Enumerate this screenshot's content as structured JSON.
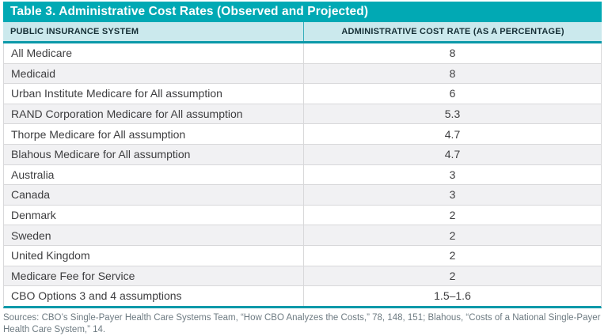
{
  "chart_data": {
    "type": "table",
    "title": "Table 3. Administrative Cost Rates (Observed and Projected)",
    "columns": [
      "PUBLIC INSURANCE SYSTEM",
      "ADMINISTRATIVE COST RATE (AS A PERCENTAGE)"
    ],
    "rows": [
      {
        "system": "All Medicare",
        "rate": "8"
      },
      {
        "system": "Medicaid",
        "rate": "8"
      },
      {
        "system": "Urban Institute Medicare for All assumption",
        "rate": "6"
      },
      {
        "system": "RAND Corporation Medicare for All assumption",
        "rate": "5.3"
      },
      {
        "system": "Thorpe Medicare for All assumption",
        "rate": "4.7"
      },
      {
        "system": "Blahous Medicare for All assumption",
        "rate": "4.7"
      },
      {
        "system": "Australia",
        "rate": "3"
      },
      {
        "system": "Canada",
        "rate": "3"
      },
      {
        "system": "Denmark",
        "rate": "2"
      },
      {
        "system": "Sweden",
        "rate": "2"
      },
      {
        "system": "United Kingdom",
        "rate": "2"
      },
      {
        "system": "Medicare Fee for Service",
        "rate": "2"
      },
      {
        "system": "CBO Options 3 and 4 assumptions",
        "rate": "1.5–1.6"
      }
    ],
    "source": "Sources: CBO’s Single-Payer Health Care Systems Team, “How CBO Analyzes the Costs,” 78, 148, 151; Blahous, “Costs of a National Single-Payer Health Care System,” 14.",
    "colors": {
      "title_bar": "#01a9b4",
      "header_background": "#cbe9ed",
      "accent_border": "#0b99a9",
      "alt_row_background": "#f1f1f3",
      "row_border": "#d8d8da",
      "body_text": "#3d3d3f",
      "header_text": "#152f36",
      "source_text": "#6e7b82"
    },
    "layout_hints": {
      "alternating_rows": true,
      "rate_column_alignment": "center",
      "system_column_alignment": "left"
    }
  }
}
